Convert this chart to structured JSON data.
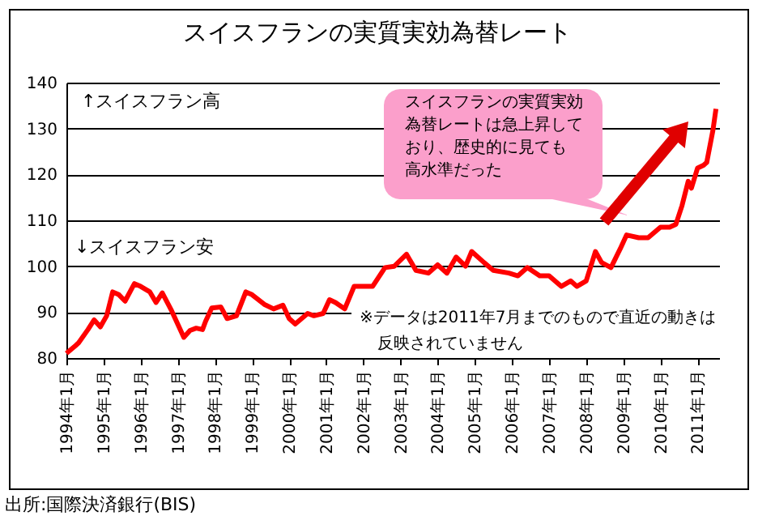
{
  "chart_data": {
    "type": "line",
    "title": "スイスフランの実質実効為替レート",
    "x": [
      "1994-01",
      "1994-04",
      "1994-05",
      "1994-08",
      "1994-10",
      "1994-12",
      "1995-02",
      "1995-04",
      "1995-06",
      "1995-08",
      "1995-11",
      "1996-01",
      "1996-04",
      "1996-06",
      "1996-08",
      "1996-11",
      "1997-03",
      "1997-05",
      "1997-07",
      "1997-09",
      "1997-10",
      "1997-12",
      "1998-03",
      "1998-05",
      "1998-08",
      "1998-11",
      "1999-01",
      "1999-05",
      "1999-08",
      "1999-11",
      "2000-01",
      "2000-03",
      "2000-07",
      "2000-09",
      "2000-12",
      "2001-02",
      "2001-04",
      "2001-07",
      "2001-10",
      "2002-04",
      "2002-08",
      "2002-11",
      "2003-03",
      "2003-06",
      "2003-10",
      "2004-01",
      "2004-04",
      "2004-07",
      "2004-10",
      "2004-12",
      "2005-04",
      "2005-07",
      "2005-12",
      "2006-03",
      "2006-06",
      "2006-10",
      "2007-01",
      "2007-05",
      "2007-08",
      "2007-10",
      "2008-01",
      "2008-04",
      "2008-06",
      "2008-09",
      "2008-12",
      "2009-02",
      "2009-06",
      "2009-09",
      "2010-01",
      "2010-04",
      "2010-06",
      "2010-08",
      "2010-10",
      "2010-11",
      "2011-01",
      "2011-03",
      "2011-04",
      "2011-06",
      "2011-07"
    ],
    "series": [
      {
        "color": "#ff0000",
        "values": [
          81,
          82.7,
          83.3,
          86.2,
          88.3,
          86.8,
          89.2,
          94.4,
          93.8,
          92.4,
          96.2,
          95.6,
          94.4,
          92.1,
          94.2,
          90.3,
          84.5,
          86,
          86.5,
          86.2,
          88,
          90.9,
          91.1,
          88.6,
          89.2,
          94.4,
          93.8,
          91.7,
          90.7,
          91.5,
          88.6,
          87.4,
          89.7,
          89.2,
          89.7,
          92.7,
          92.1,
          90.7,
          95.6,
          95.6,
          99.7,
          100,
          102.6,
          99.1,
          98.5,
          100.3,
          98.5,
          102,
          100,
          103.2,
          100.8,
          99.1,
          98.5,
          97.9,
          99.7,
          97.9,
          97.9,
          95.6,
          96.8,
          95.6,
          96.8,
          103.2,
          100.8,
          99.7,
          103.8,
          106.8,
          106.2,
          106.2,
          108.5,
          108.5,
          109.1,
          113.2,
          118.5,
          117,
          121.4,
          122,
          122.6,
          129.6,
          134.3
        ]
      }
    ],
    "xlim": [
      "1994-01",
      "2011-08"
    ],
    "xticks": [
      {
        "value": "1994-01",
        "label": "1994年1月"
      },
      {
        "value": "1995-01",
        "label": "1995年1月"
      },
      {
        "value": "1996-01",
        "label": "1996年1月"
      },
      {
        "value": "1997-01",
        "label": "1997年1月"
      },
      {
        "value": "1998-01",
        "label": "1998年1月"
      },
      {
        "value": "1999-01",
        "label": "1999年1月"
      },
      {
        "value": "2000-01",
        "label": "2000年1月"
      },
      {
        "value": "2001-01",
        "label": "2001年1月"
      },
      {
        "value": "2002-01",
        "label": "2002年1月"
      },
      {
        "value": "2003-01",
        "label": "2003年1月"
      },
      {
        "value": "2004-01",
        "label": "2004年1月"
      },
      {
        "value": "2005-01",
        "label": "2005年1月"
      },
      {
        "value": "2006-01",
        "label": "2006年1月"
      },
      {
        "value": "2007-01",
        "label": "2007年1月"
      },
      {
        "value": "2008-01",
        "label": "2008年1月"
      },
      {
        "value": "2009-01",
        "label": "2009年1月"
      },
      {
        "value": "2010-01",
        "label": "2010年1月"
      },
      {
        "value": "2011-01",
        "label": "2011年1月"
      }
    ],
    "ylim": [
      80,
      140
    ],
    "yticks": [
      80,
      90,
      100,
      110,
      120,
      130,
      140
    ],
    "grid": "y",
    "legend": false,
    "marker": "none",
    "line_style": "solid",
    "annotations": [
      "↑スイスフラン高",
      "↓スイスフラン安",
      "スイスフランの実質実効為替レートは急上昇しており、歴史的に見ても高水準だった",
      "※データは2011年7月までのもので直近の動きは反映されていません",
      "出所:国際決済銀行(BIS)"
    ]
  }
}
